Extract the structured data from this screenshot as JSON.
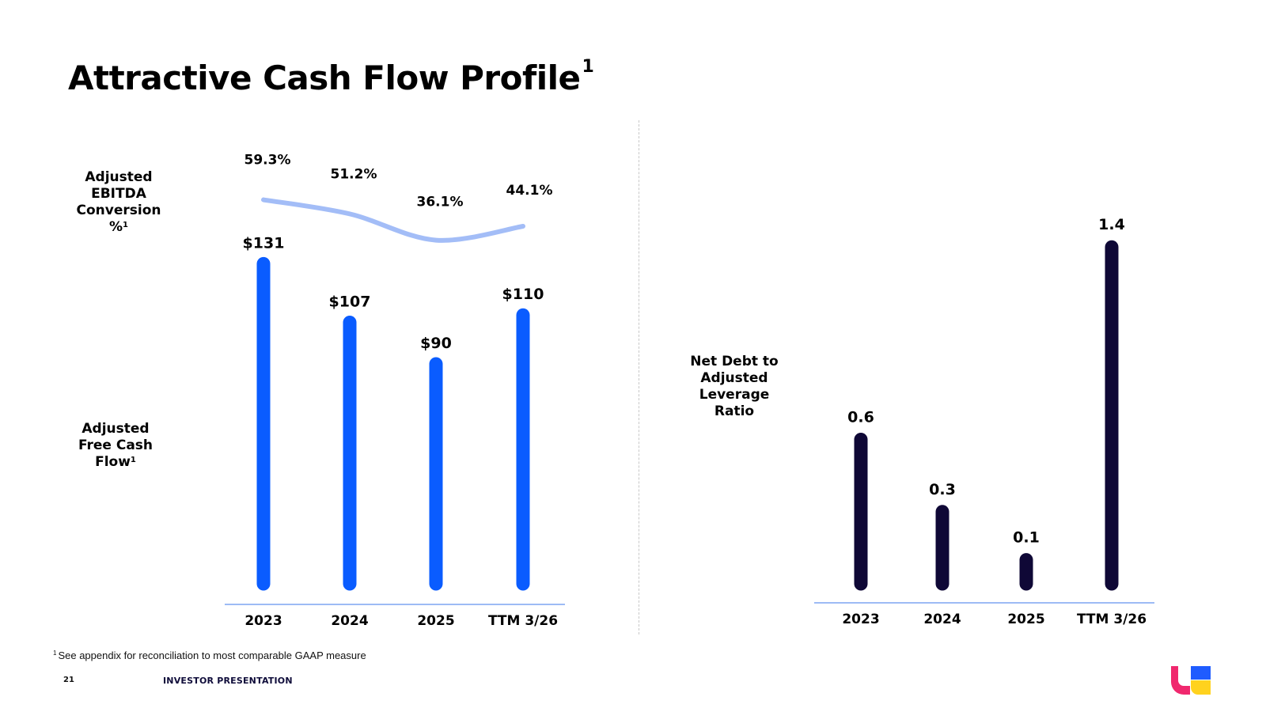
{
  "page": {
    "title": "Attractive Cash Flow Profile",
    "title_footnote_marker": "1",
    "footnote_marker": "1",
    "footnote": "See appendix for reconciliation to most comparable GAAP measure",
    "page_number": "21",
    "footer_label": "INVESTOR PRESENTATION"
  },
  "labels": {
    "conversion": {
      "lines": [
        "Adjusted",
        "EBITDA",
        "Conversion"
      ],
      "last": "%",
      "sup": "1"
    },
    "fcf": {
      "lines": [
        "Adjusted",
        "Free Cash"
      ],
      "last": "Flow",
      "sup": "1"
    },
    "leverage": {
      "lines": [
        "Net Debt to",
        "Adjusted",
        "Leverage",
        "Ratio"
      ]
    }
  },
  "colors": {
    "fcf_bar": "#0a5cff",
    "conversion_line": "#a3bdf7",
    "leverage_bar": "#0f0836",
    "axis": "#9dbbf5",
    "logo_pink": "#f0286e",
    "logo_blue": "#1f5cff",
    "logo_yellow": "#ffd21e"
  },
  "icons": {
    "logo": "brand-logo-icon"
  },
  "chart_data": [
    {
      "type": "bar",
      "name": "Adjusted Free Cash Flow",
      "categories": [
        "2023",
        "2024",
        "2025",
        "TTM 3/26"
      ],
      "values": [
        131,
        107,
        90,
        110
      ],
      "value_labels": [
        "$131",
        "$107",
        "$90",
        "$110"
      ],
      "overlay_line": {
        "type": "line",
        "name": "Adjusted EBITDA Conversion %",
        "values": [
          59.3,
          51.2,
          36.1,
          44.1
        ],
        "value_labels": [
          "59.3%",
          "51.2%",
          "36.1%",
          "44.1%"
        ],
        "ylim": [
          20,
          70
        ]
      },
      "ylim": [
        0,
        135
      ],
      "grid": false,
      "legend": "none"
    },
    {
      "type": "bar",
      "name": "Net Debt to Adjusted Leverage Ratio",
      "categories": [
        "2023",
        "2024",
        "2025",
        "TTM 3/26"
      ],
      "values": [
        0.6,
        0.3,
        0.1,
        1.4
      ],
      "value_labels": [
        "0.6",
        "0.3",
        "0.1",
        "1.4"
      ],
      "ylim": [
        0,
        1.45
      ],
      "grid": false,
      "legend": "none"
    }
  ]
}
